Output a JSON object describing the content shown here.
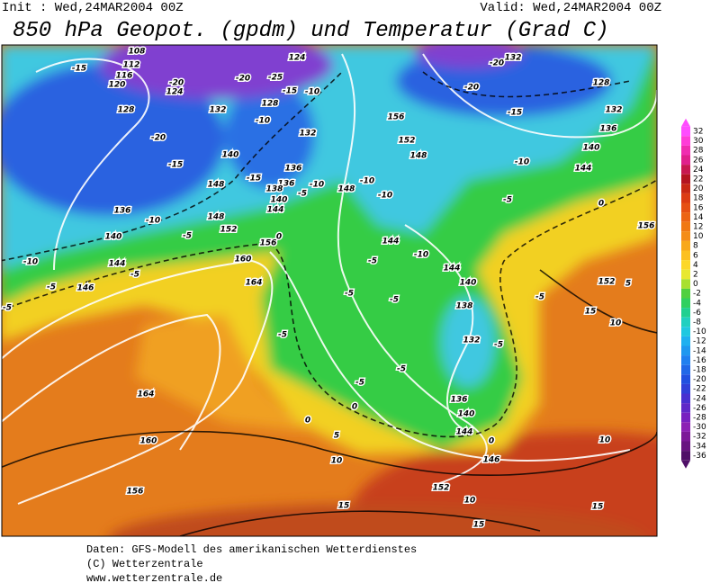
{
  "header": {
    "init": "Init : Wed,24MAR2004 00Z",
    "valid": "Valid: Wed,24MAR2004 00Z",
    "title": "850 hPa Geopot. (gpdm) und Temperatur (Grad C)"
  },
  "map": {
    "labels": [
      "108",
      "112",
      "116",
      "120",
      "-15",
      "-20",
      "124",
      "-20",
      "-25",
      "124",
      "-15",
      "-10",
      "128",
      "132",
      "128",
      "-20",
      "-10",
      "132",
      "140",
      "-15",
      "136",
      "-15",
      "136",
      "138",
      "140",
      "144",
      "-5",
      "-10",
      "148",
      "148",
      "136",
      "-10",
      "148",
      "-5",
      "152",
      "156",
      "0",
      "140",
      "-10",
      "144",
      "-5",
      "-5",
      "146",
      "-5",
      "160",
      "164",
      "-5",
      "164",
      "160",
      "156",
      "156",
      "152",
      "148",
      "-10",
      "-10",
      "144",
      "-5",
      "-10",
      "144",
      "140",
      "-5",
      "-5",
      "138",
      "132",
      "-5",
      "-5",
      "-5",
      "136",
      "140",
      "144",
      "0",
      "0",
      "0",
      "5",
      "10",
      "146",
      "152",
      "10",
      "15",
      "15",
      "10",
      "15",
      "-20",
      "-15",
      "-20",
      "132",
      "128",
      "132",
      "136",
      "140",
      "144",
      "-10",
      "-5",
      "0",
      "156",
      "-5",
      "152",
      "5",
      "15",
      "10"
    ]
  },
  "colorbar": {
    "labels": [
      32,
      30,
      28,
      26,
      24,
      22,
      20,
      18,
      16,
      14,
      12,
      10,
      8,
      6,
      4,
      2,
      0,
      -2,
      -4,
      -6,
      -8,
      -10,
      -12,
      -14,
      -16,
      -18,
      -20,
      -22,
      -24,
      -26,
      -28,
      -30,
      -32,
      -34,
      -36
    ],
    "colors": [
      "#ff4cff",
      "#ff3cd8",
      "#f02cb0",
      "#e0208c",
      "#c81850",
      "#b41420",
      "#c82814",
      "#dc3c14",
      "#e65014",
      "#ec6414",
      "#f07814",
      "#f48c18",
      "#f8a81c",
      "#fcc020",
      "#fcd828",
      "#e8e830",
      "#a8e030",
      "#50d040",
      "#30d060",
      "#20d090",
      "#20d0c0",
      "#20c8e0",
      "#20b0f0",
      "#2098f0",
      "#2080f0",
      "#2068e8",
      "#2050e0",
      "#3040d8",
      "#4830d0",
      "#6028c8",
      "#7820c0",
      "#8c20b4",
      "#7c1898",
      "#681480",
      "#501068"
    ]
  },
  "footer": {
    "lines": [
      "Daten: GFS-Modell des amerikanischen Wetterdienstes",
      "(C) Wetterzentrale",
      "www.wetterzentrale.de"
    ]
  }
}
